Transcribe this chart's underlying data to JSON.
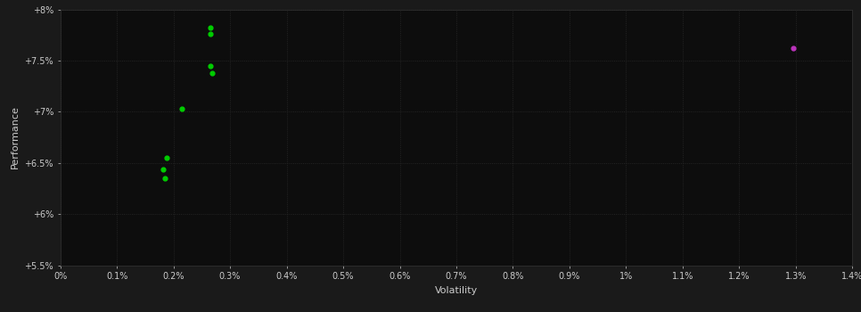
{
  "background_color": "#1a1a1a",
  "plot_bg_color": "#0d0d0d",
  "grid_color": "#2a2a2a",
  "text_color": "#cccccc",
  "xlabel": "Volatility",
  "ylabel": "Performance",
  "xlim": [
    0,
    0.014
  ],
  "ylim": [
    0.055,
    0.08
  ],
  "xticks": [
    0.0,
    0.001,
    0.002,
    0.003,
    0.004,
    0.005,
    0.006,
    0.007,
    0.008,
    0.009,
    0.01,
    0.011,
    0.012,
    0.013,
    0.014
  ],
  "xtick_labels": [
    "0%",
    "0.1%",
    "0.2%",
    "0.3%",
    "0.4%",
    "0.5%",
    "0.6%",
    "0.7%",
    "0.8%",
    "0.9%",
    "1%",
    "1.1%",
    "1.2%",
    "1.3%",
    "1.4%"
  ],
  "yticks": [
    0.055,
    0.06,
    0.065,
    0.07,
    0.075,
    0.08
  ],
  "ytick_labels": [
    "+5.5%",
    "+6%",
    "+6.5%",
    "+7%",
    "+7.5%",
    "+8%"
  ],
  "green_points": [
    [
      0.00265,
      0.0782
    ],
    [
      0.00265,
      0.0776
    ],
    [
      0.00265,
      0.0745
    ],
    [
      0.00268,
      0.0738
    ],
    [
      0.00215,
      0.0703
    ],
    [
      0.00188,
      0.0655
    ],
    [
      0.00182,
      0.0644
    ],
    [
      0.00185,
      0.0635
    ]
  ],
  "magenta_points": [
    [
      0.01295,
      0.0762
    ]
  ],
  "green_color": "#00cc00",
  "magenta_color": "#bb33bb",
  "point_size": 12
}
